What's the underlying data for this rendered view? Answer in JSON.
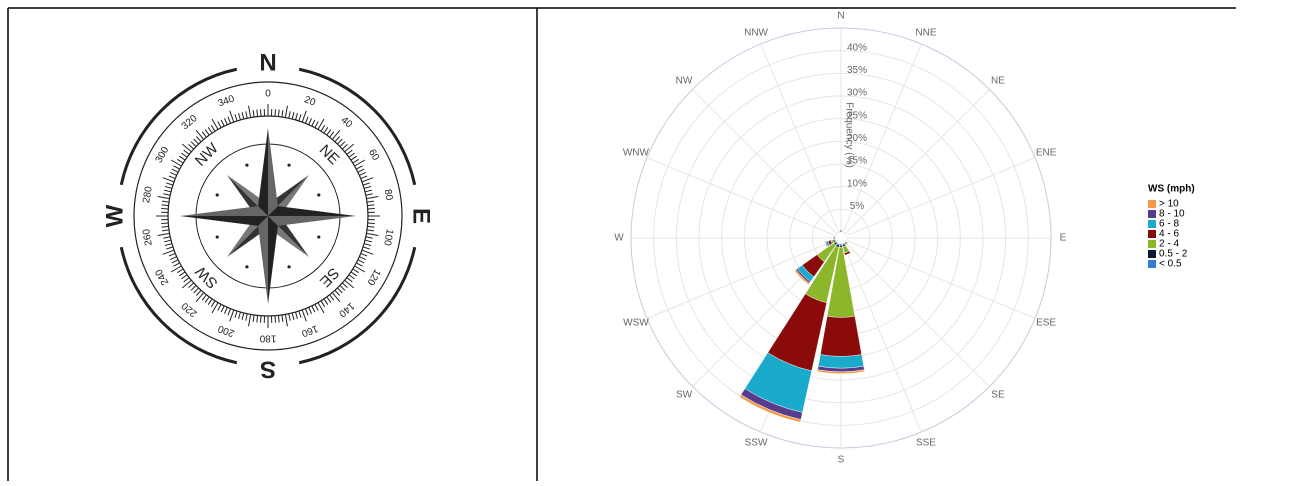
{
  "compass": {
    "cardinals": [
      "N",
      "E",
      "S",
      "W"
    ],
    "intercardinals": [
      "NE",
      "SE",
      "SW",
      "NW"
    ],
    "degrees": [
      "0",
      "20",
      "40",
      "60",
      "80",
      "100",
      "120",
      "140",
      "160",
      "180",
      "200",
      "220",
      "240",
      "260",
      "280",
      "300",
      "320",
      "340"
    ]
  },
  "chart_data": {
    "type": "windrose",
    "y_label": "Frequency (%)",
    "legend_title": "WS (mph)",
    "legend_position": "right",
    "categories": [
      "N",
      "NNE",
      "NE",
      "ENE",
      "E",
      "ESE",
      "SE",
      "SSE",
      "S",
      "SSW",
      "SW",
      "WSW",
      "W",
      "WNW",
      "NW",
      "NNW"
    ],
    "ylim": [
      0,
      45
    ],
    "yticks": [
      {
        "value": 5,
        "label": "5%"
      },
      {
        "value": 10,
        "label": "10%"
      },
      {
        "value": 15,
        "label": "15%"
      },
      {
        "value": 20,
        "label": "20%"
      },
      {
        "value": 25,
        "label": "25%"
      },
      {
        "value": 30,
        "label": "30%"
      },
      {
        "value": 35,
        "label": "35%"
      },
      {
        "value": 40,
        "label": "40%"
      }
    ],
    "grid": true,
    "series": [
      {
        "name": "< 0.5",
        "color": "#2f7fd6",
        "values": [
          0.1,
          0.1,
          0.1,
          0.1,
          0.1,
          0.1,
          0.1,
          0.2,
          0.3,
          0.3,
          0.2,
          0.2,
          0.1,
          0.1,
          0.1,
          0.1
        ]
      },
      {
        "name": "0.5 - 2",
        "color": "#0e1a33",
        "values": [
          0.2,
          0.1,
          0.1,
          0.1,
          0.1,
          0.1,
          0.2,
          0.4,
          0.4,
          0.5,
          0.4,
          0.3,
          0.2,
          0.1,
          0.1,
          0.1
        ]
      },
      {
        "name": "2 - 4",
        "color": "#8db72b",
        "values": [
          0.3,
          0,
          0,
          0,
          0,
          0,
          0.3,
          1.5,
          15.5,
          12.5,
          4.5,
          0.5,
          0.2,
          0,
          0,
          0.1
        ]
      },
      {
        "name": "4 - 6",
        "color": "#8b0b0b",
        "values": [
          0,
          0,
          0,
          0,
          0,
          0,
          0,
          0.5,
          8.6,
          15.4,
          4,
          0.6,
          0.1,
          0,
          0,
          0
        ]
      },
      {
        "name": "6 - 8",
        "color": "#1aabcb",
        "values": [
          0,
          0,
          0,
          0,
          0,
          0,
          0,
          0,
          2.6,
          9.4,
          1.3,
          0.5,
          0,
          0,
          0,
          0
        ]
      },
      {
        "name": "8 - 10",
        "color": "#573b8d",
        "values": [
          0,
          0,
          0,
          0,
          0,
          0,
          0,
          0,
          0.8,
          1.6,
          0.4,
          0.2,
          0,
          0,
          0,
          0
        ]
      },
      {
        "name": "> 10",
        "color": "#f39a45",
        "values": [
          0,
          0,
          0,
          0,
          0,
          0,
          0,
          0,
          0.4,
          0.6,
          0.4,
          0.1,
          0,
          0,
          0,
          0
        ]
      }
    ]
  }
}
